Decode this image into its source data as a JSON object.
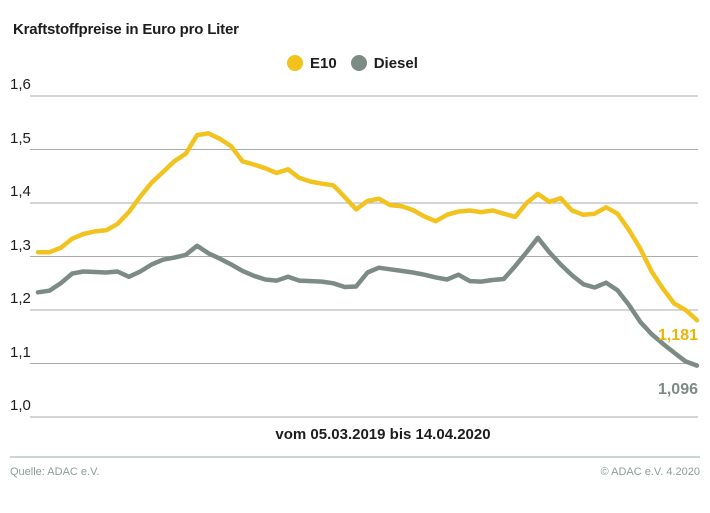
{
  "title": "Kraftstoffpreise in Euro pro Liter",
  "legend": {
    "items": [
      {
        "label": "E10",
        "color": "#f2c31e"
      },
      {
        "label": "Diesel",
        "color": "#7c8c85"
      }
    ]
  },
  "chart_data": {
    "type": "line",
    "title": "Kraftstoffpreise in Euro pro Liter",
    "xlabel": "vom 05.03.2019 bis 14.04.2020",
    "ylabel": "Euro pro Liter",
    "x_period": {
      "start": "05.03.2019",
      "end": "14.04.2020",
      "interval": "weekly"
    },
    "ylim": [
      1.0,
      1.6
    ],
    "grid": "horizontal",
    "legend_position": "top-center",
    "y_ticks": [
      {
        "value": 1.6,
        "label": "1,6"
      },
      {
        "value": 1.5,
        "label": "1,5"
      },
      {
        "value": 1.4,
        "label": "1,4"
      },
      {
        "value": 1.3,
        "label": "1,3"
      },
      {
        "value": 1.2,
        "label": "1,2"
      },
      {
        "value": 1.1,
        "label": "1,1"
      },
      {
        "value": 1.0,
        "label": "1,0"
      }
    ],
    "series": [
      {
        "name": "E10",
        "color": "#f2c31e",
        "end_label": "1,181",
        "final_value": 1.181,
        "values": [
          1.308,
          1.308,
          1.316,
          1.333,
          1.342,
          1.347,
          1.349,
          1.361,
          1.383,
          1.412,
          1.438,
          1.458,
          1.478,
          1.492,
          1.527,
          1.53,
          1.52,
          1.506,
          1.478,
          1.472,
          1.465,
          1.456,
          1.463,
          1.447,
          1.44,
          1.436,
          1.433,
          1.411,
          1.388,
          1.404,
          1.408,
          1.396,
          1.394,
          1.387,
          1.375,
          1.366,
          1.378,
          1.384,
          1.386,
          1.383,
          1.386,
          1.38,
          1.374,
          1.4,
          1.417,
          1.402,
          1.409,
          1.386,
          1.378,
          1.38,
          1.392,
          1.38,
          1.35,
          1.315,
          1.272,
          1.24,
          1.212,
          1.2,
          1.181
        ]
      },
      {
        "name": "Diesel",
        "color": "#7c8c85",
        "end_label": "1,096",
        "final_value": 1.096,
        "values": [
          1.233,
          1.236,
          1.25,
          1.268,
          1.272,
          1.271,
          1.27,
          1.272,
          1.262,
          1.272,
          1.285,
          1.294,
          1.298,
          1.303,
          1.32,
          1.306,
          1.296,
          1.285,
          1.273,
          1.264,
          1.257,
          1.255,
          1.262,
          1.255,
          1.254,
          1.253,
          1.25,
          1.243,
          1.244,
          1.27,
          1.279,
          1.276,
          1.273,
          1.27,
          1.266,
          1.261,
          1.257,
          1.266,
          1.254,
          1.253,
          1.256,
          1.258,
          1.282,
          1.308,
          1.335,
          1.308,
          1.285,
          1.265,
          1.248,
          1.242,
          1.251,
          1.237,
          1.21,
          1.178,
          1.155,
          1.137,
          1.12,
          1.104,
          1.096
        ]
      }
    ]
  },
  "footer": {
    "source": "Quelle: ADAC e.V.",
    "copyright": "© ADAC e.V. 4.2020"
  }
}
